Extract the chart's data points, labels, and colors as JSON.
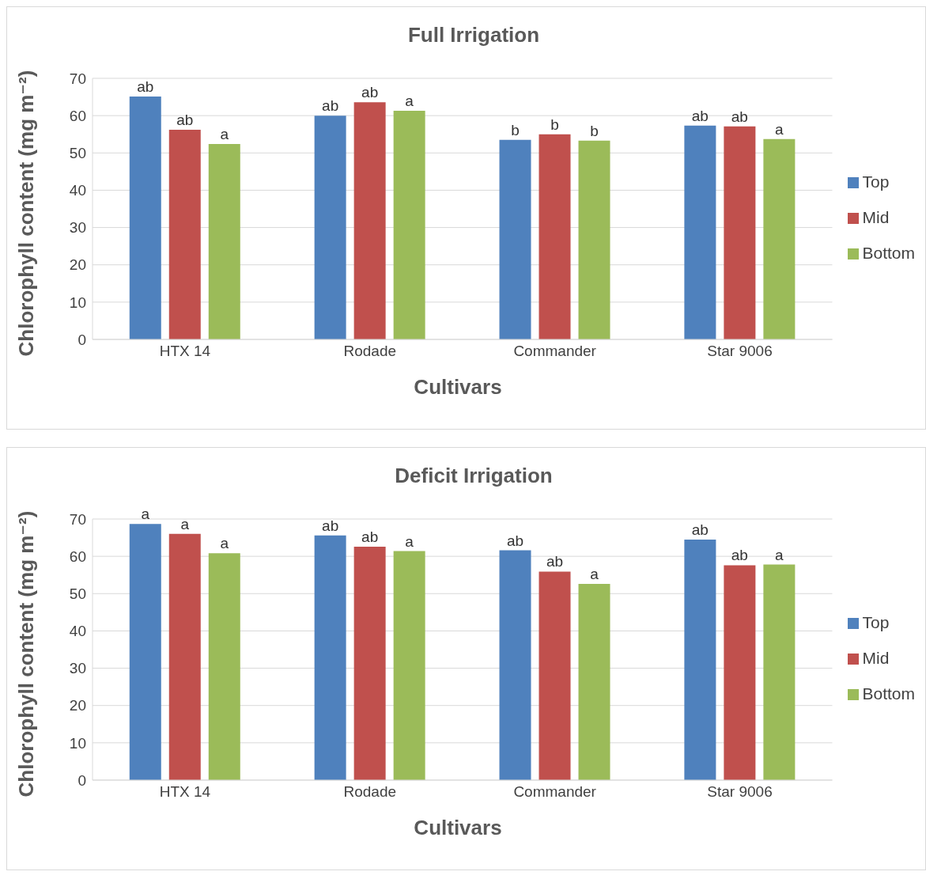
{
  "chart_data": [
    {
      "type": "bar",
      "title": "Full Irrigation",
      "xlabel": "Cultivars",
      "ylabel": "Chlorophyll content (mg m⁻²)",
      "categories": [
        "HTX 14",
        "Rodade",
        "Commander",
        "Star 9006"
      ],
      "ylim": [
        0,
        70
      ],
      "yticks": [
        0,
        10,
        20,
        30,
        40,
        50,
        60,
        70
      ],
      "grid": "y",
      "legend": "right",
      "series": [
        {
          "name": "Top",
          "color": "#4f81bd",
          "values": [
            65.1,
            60.0,
            53.5,
            57.3
          ],
          "value_labels": [
            "ab",
            "ab",
            "b",
            "ab"
          ]
        },
        {
          "name": "Mid",
          "color": "#c0504d",
          "values": [
            56.2,
            63.6,
            55.0,
            57.1
          ],
          "value_labels": [
            "ab",
            "ab",
            "b",
            "ab"
          ]
        },
        {
          "name": "Bottom",
          "color": "#9bbb59",
          "values": [
            52.4,
            61.3,
            53.3,
            53.7
          ],
          "value_labels": [
            "a",
            "a",
            "b",
            "a"
          ]
        }
      ]
    },
    {
      "type": "bar",
      "title": "Deficit Irrigation",
      "xlabel": "Cultivars",
      "ylabel": "Chlorophyll content (mg m⁻²)",
      "categories": [
        "HTX 14",
        "Rodade",
        "Commander",
        "Star 9006"
      ],
      "ylim": [
        0,
        70
      ],
      "yticks": [
        0,
        10,
        20,
        30,
        40,
        50,
        60,
        70
      ],
      "grid": "y",
      "legend": "right",
      "series": [
        {
          "name": "Top",
          "color": "#4f81bd",
          "values": [
            68.7,
            65.6,
            61.6,
            64.5
          ],
          "value_labels": [
            "a",
            "ab",
            "ab",
            "ab"
          ]
        },
        {
          "name": "Mid",
          "color": "#c0504d",
          "values": [
            66.0,
            62.6,
            55.9,
            57.6
          ],
          "value_labels": [
            "a",
            "ab",
            "ab",
            "ab"
          ]
        },
        {
          "name": "Bottom",
          "color": "#9bbb59",
          "values": [
            60.8,
            61.4,
            52.6,
            57.8
          ],
          "value_labels": [
            "a",
            "a",
            "a",
            "a"
          ]
        }
      ]
    }
  ]
}
